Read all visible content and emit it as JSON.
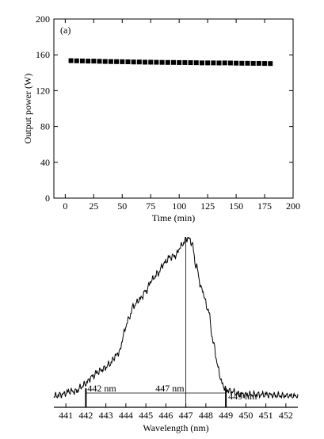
{
  "chart_data": [
    {
      "panel_label": "(a)",
      "type": "scatter",
      "x": [
        5,
        10,
        15,
        20,
        25,
        30,
        35,
        40,
        45,
        50,
        55,
        60,
        65,
        70,
        75,
        80,
        85,
        90,
        95,
        100,
        105,
        110,
        115,
        120,
        125,
        130,
        135,
        140,
        145,
        150,
        155,
        160,
        165,
        170,
        175,
        180
      ],
      "y": [
        153.5,
        153.3,
        153.2,
        153.0,
        153.0,
        152.8,
        152.6,
        152.5,
        152.4,
        152.3,
        152.2,
        152.0,
        152.0,
        151.8,
        151.8,
        151.7,
        151.6,
        151.5,
        151.5,
        151.4,
        151.4,
        151.3,
        151.2,
        151.0,
        151.0,
        151.0,
        150.9,
        151.0,
        150.9,
        150.7,
        150.6,
        150.6,
        150.5,
        150.5,
        150.4,
        150.3
      ],
      "xlabel": "Time (min)",
      "ylabel": "Output power (W)",
      "xlim": [
        -10,
        200
      ],
      "ylim": [
        0,
        200
      ],
      "xticks": [
        "0",
        "25",
        "50",
        "75",
        "100",
        "125",
        "150",
        "175",
        "200"
      ],
      "yticks": [
        "0",
        "40",
        "80",
        "120",
        "160",
        "200"
      ],
      "grid": false,
      "marker": "square"
    },
    {
      "type": "line",
      "xlabel": "Wavelength (nm)",
      "xlim": [
        440.4,
        452.6
      ],
      "xticks": [
        "441",
        "442",
        "443",
        "444",
        "445",
        "446",
        "447",
        "448",
        "449",
        "450",
        "451",
        "452"
      ],
      "grid": false,
      "x": [
        440.4,
        440.8,
        441.2,
        441.5,
        441.8,
        442.0,
        442.3,
        442.6,
        442.9,
        443.2,
        443.5,
        443.7,
        443.9,
        444.1,
        444.4,
        444.7,
        445.0,
        445.3,
        445.6,
        445.9,
        446.2,
        446.5,
        446.7,
        446.9,
        447.0,
        447.1,
        447.3,
        447.5,
        447.8,
        448.1,
        448.4,
        448.6,
        448.8,
        449.0,
        449.3,
        449.6,
        450.0,
        450.5,
        451.0,
        451.5,
        452.0,
        452.6
      ],
      "y": [
        0.0,
        0.01,
        0.03,
        0.03,
        0.06,
        0.08,
        0.12,
        0.15,
        0.17,
        0.2,
        0.25,
        0.28,
        0.39,
        0.47,
        0.56,
        0.6,
        0.65,
        0.72,
        0.76,
        0.82,
        0.86,
        0.87,
        0.92,
        0.95,
        0.97,
        0.98,
        0.95,
        0.81,
        0.66,
        0.54,
        0.32,
        0.18,
        0.08,
        0.04,
        0.03,
        0.015,
        0.01,
        0.01,
        0.01,
        0.005,
        0.002,
        0.0
      ],
      "annotations": [
        {
          "text": "442 nm",
          "x": 442
        },
        {
          "text": "447 nm",
          "x": 447
        },
        {
          "text": "449 nm",
          "x": 449
        }
      ]
    }
  ]
}
